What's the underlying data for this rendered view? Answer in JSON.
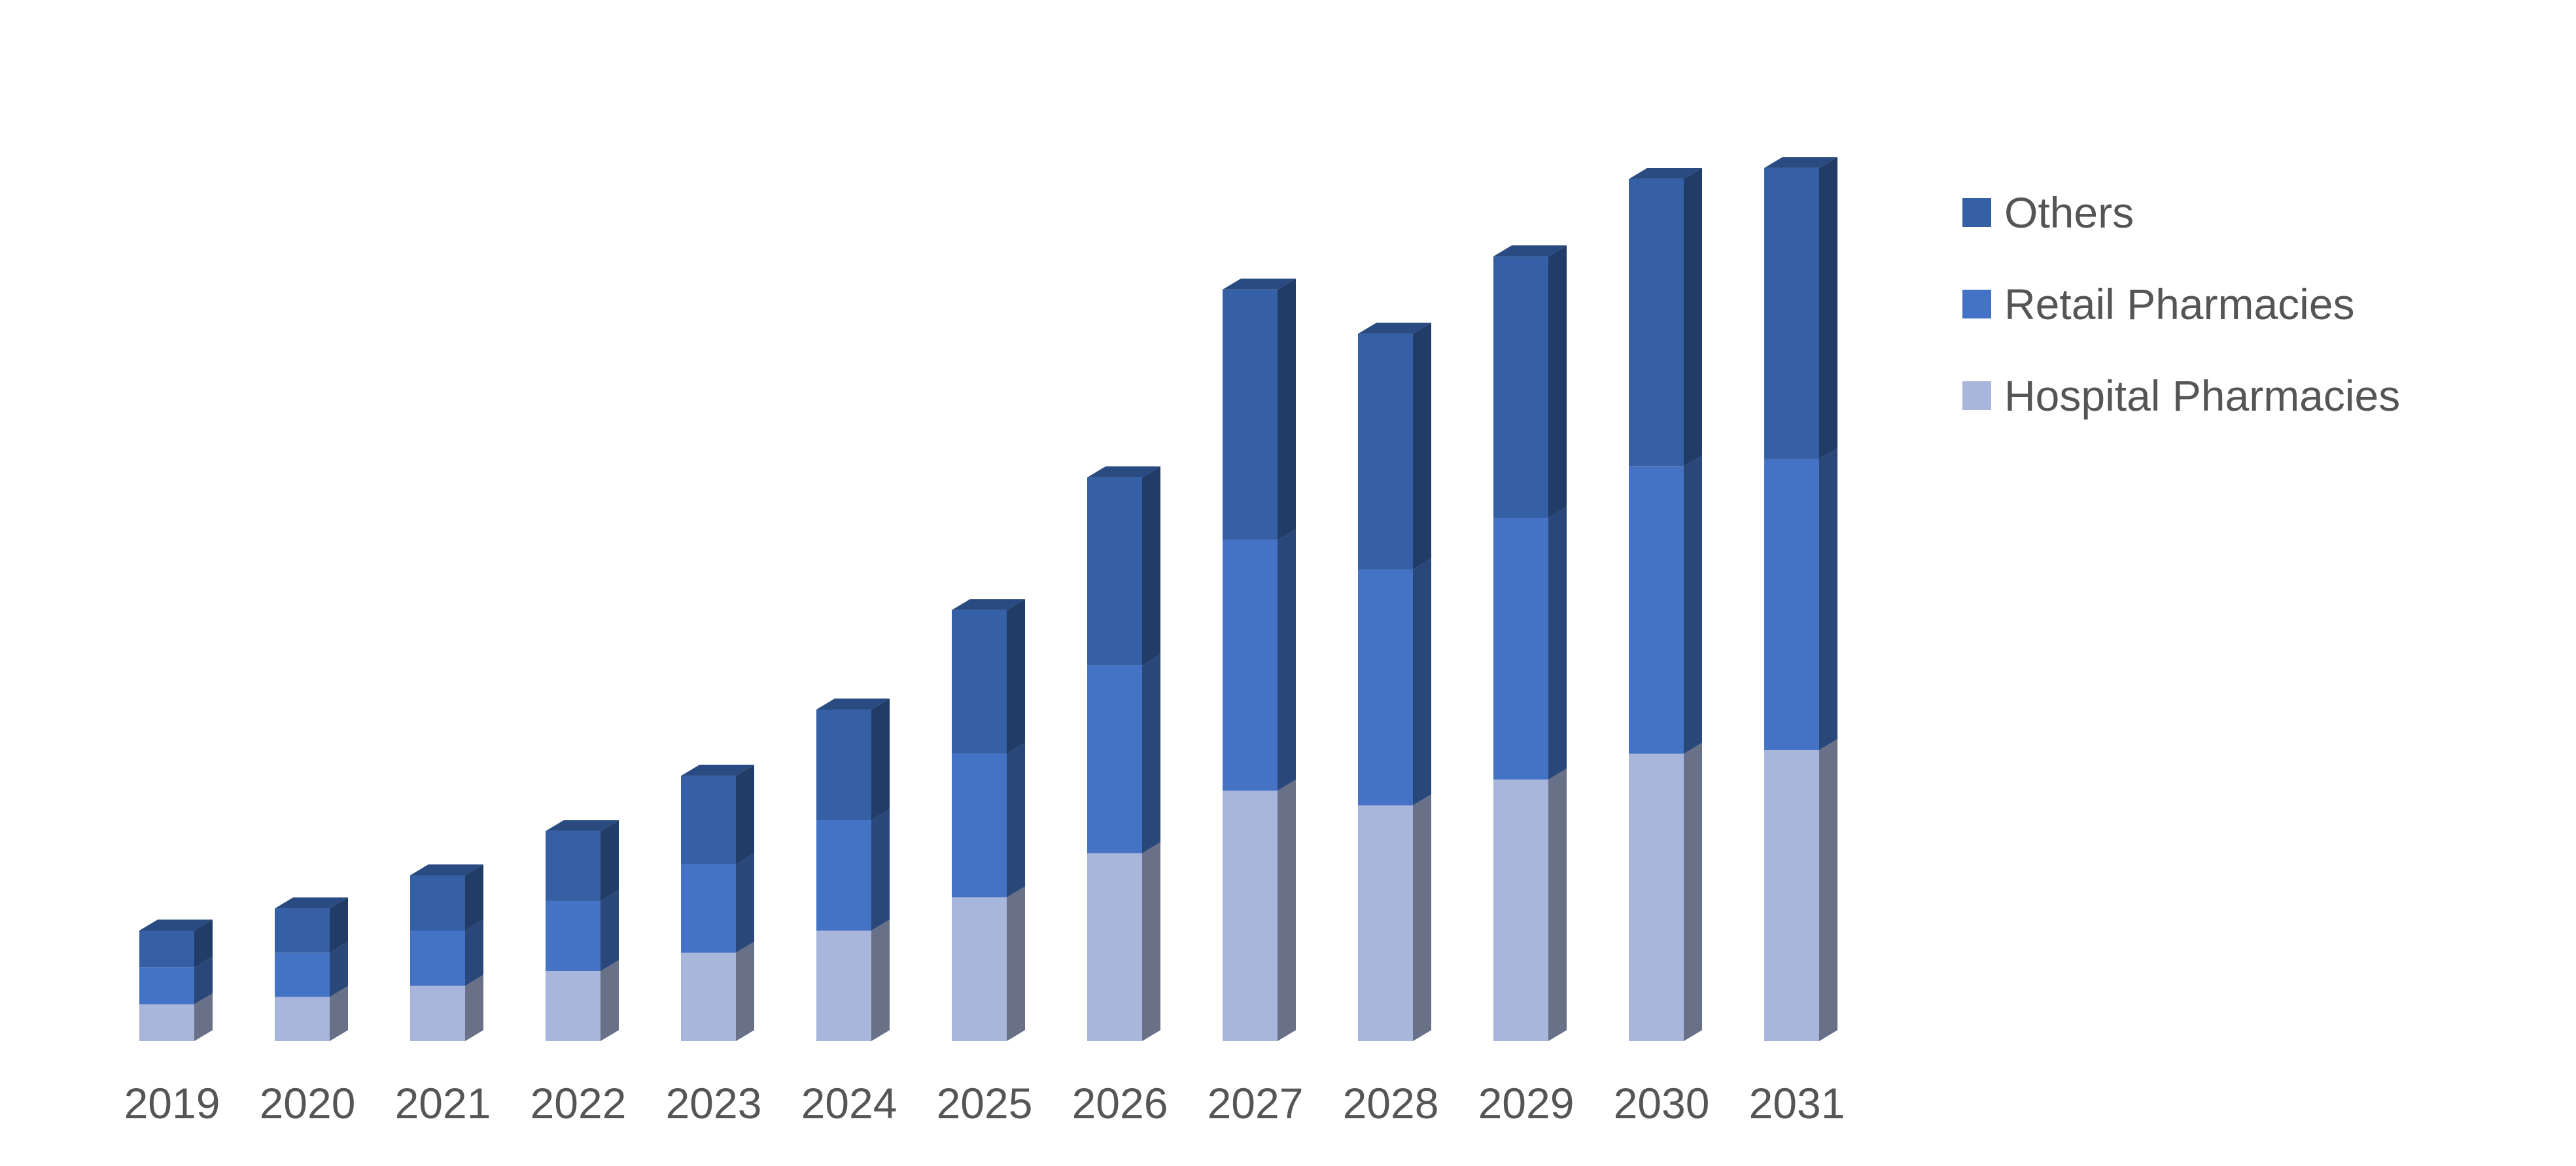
{
  "chart_data": {
    "type": "bar",
    "stacked": true,
    "style": "3d-column",
    "title": "",
    "xlabel": "",
    "ylabel": "",
    "categories": [
      "2019",
      "2020",
      "2021",
      "2022",
      "2023",
      "2024",
      "2025",
      "2026",
      "2027",
      "2028",
      "2029",
      "2030",
      "2031"
    ],
    "series": [
      {
        "name": "Hospital Pharmacies",
        "color": "#A9B6DB",
        "values": [
          1.0,
          1.2,
          1.5,
          1.9,
          2.4,
          3.0,
          3.9,
          5.1,
          6.8,
          6.4,
          7.1,
          7.8,
          7.9
        ]
      },
      {
        "name": "Retail Pharmacies",
        "color": "#4472C4",
        "values": [
          1.0,
          1.2,
          1.5,
          1.9,
          2.4,
          3.0,
          3.9,
          5.1,
          6.8,
          6.4,
          7.1,
          7.8,
          7.9
        ]
      },
      {
        "name": "Others",
        "color": "#3560A5",
        "values": [
          1.0,
          1.2,
          1.5,
          1.9,
          2.4,
          3.0,
          3.9,
          5.1,
          6.8,
          6.4,
          7.1,
          7.8,
          7.9
        ]
      }
    ],
    "ylim": [
      0,
      24
    ],
    "grid": false,
    "legend_position": "right",
    "legend_order": [
      "Others",
      "Retail Pharmacies",
      "Hospital Pharmacies"
    ]
  }
}
